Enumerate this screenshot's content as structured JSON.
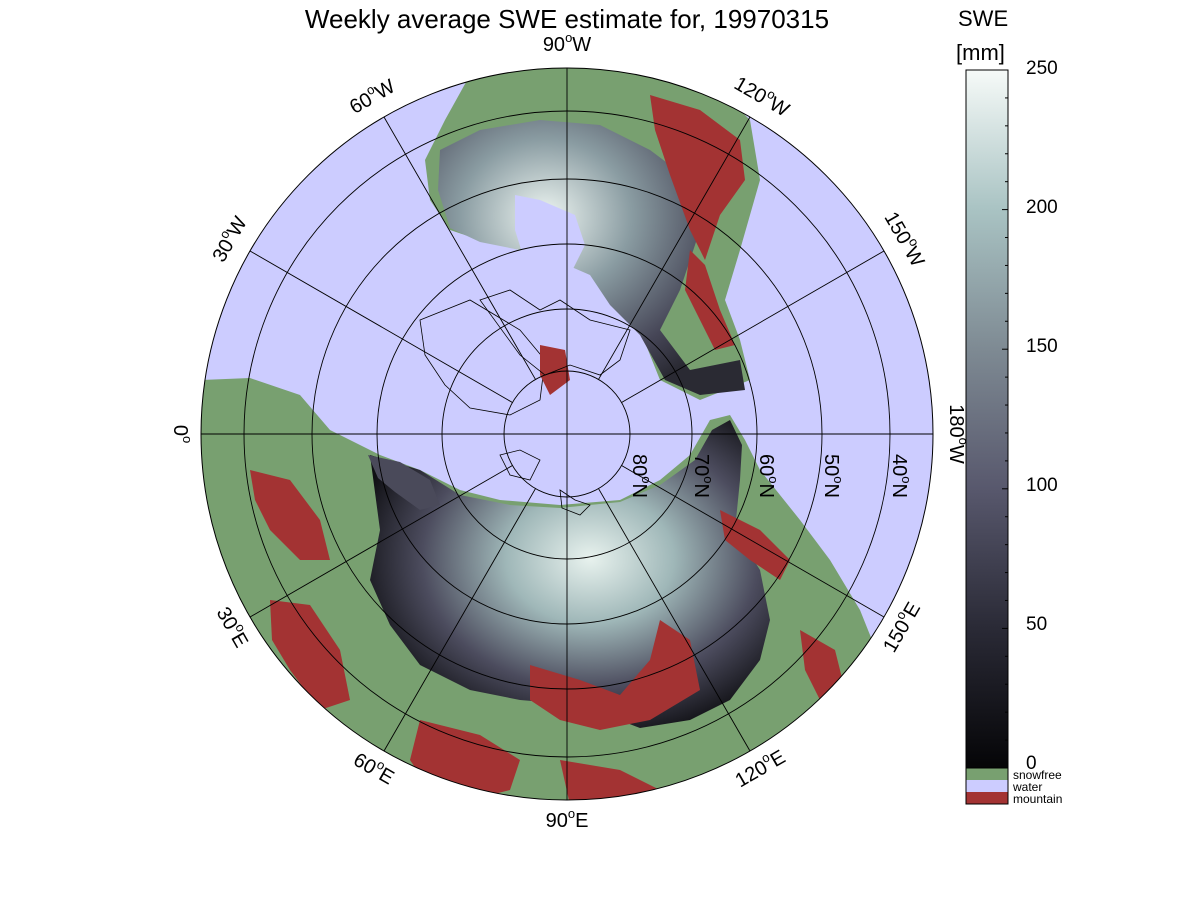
{
  "title": "Weekly average SWE estimate for, 19970315",
  "colorbar": {
    "title_line1": "SWE",
    "title_line2": "[mm]",
    "min": 0,
    "max": 250,
    "ticks": [
      "0",
      "50",
      "100",
      "150",
      "200",
      "250"
    ],
    "gradient": [
      "#050507",
      "#2a2a36",
      "#58586d",
      "#7e8a93",
      "#a9c3c3",
      "#f6faf8"
    ],
    "categories": [
      {
        "label": "snowfree",
        "color": "#78a070"
      },
      {
        "label": "water",
        "color": "#ccccff"
      },
      {
        "label": "mountain",
        "color": "#a33333"
      }
    ]
  },
  "map": {
    "projection": "north-polar-stereographic",
    "ocean_color": "#ccccff",
    "snowfree_color": "#78a070",
    "mountain_color": "#a33333",
    "longitude_labels": [
      {
        "base": "90",
        "sup": "o",
        "hem": "W"
      },
      {
        "base": "120",
        "sup": "o",
        "hem": "W"
      },
      {
        "base": "150",
        "sup": "o",
        "hem": "W"
      },
      {
        "base": "180",
        "sup": "o",
        "hem": "W"
      },
      {
        "base": "150",
        "sup": "o",
        "hem": "E"
      },
      {
        "base": "120",
        "sup": "o",
        "hem": "E"
      },
      {
        "base": "90",
        "sup": "o",
        "hem": "E"
      },
      {
        "base": "60",
        "sup": "o",
        "hem": "E"
      },
      {
        "base": "30",
        "sup": "o",
        "hem": "E"
      },
      {
        "base": "0",
        "sup": "o",
        "hem": ""
      },
      {
        "base": "30",
        "sup": "o",
        "hem": "W"
      },
      {
        "base": "60",
        "sup": "o",
        "hem": "W"
      }
    ],
    "latitude_labels": [
      {
        "base": "80",
        "sup": "o",
        "hem": "N"
      },
      {
        "base": "70",
        "sup": "o",
        "hem": "N"
      },
      {
        "base": "60",
        "sup": "o",
        "hem": "N"
      },
      {
        "base": "50",
        "sup": "o",
        "hem": "N"
      },
      {
        "base": "40",
        "sup": "o",
        "hem": "N"
      }
    ]
  }
}
